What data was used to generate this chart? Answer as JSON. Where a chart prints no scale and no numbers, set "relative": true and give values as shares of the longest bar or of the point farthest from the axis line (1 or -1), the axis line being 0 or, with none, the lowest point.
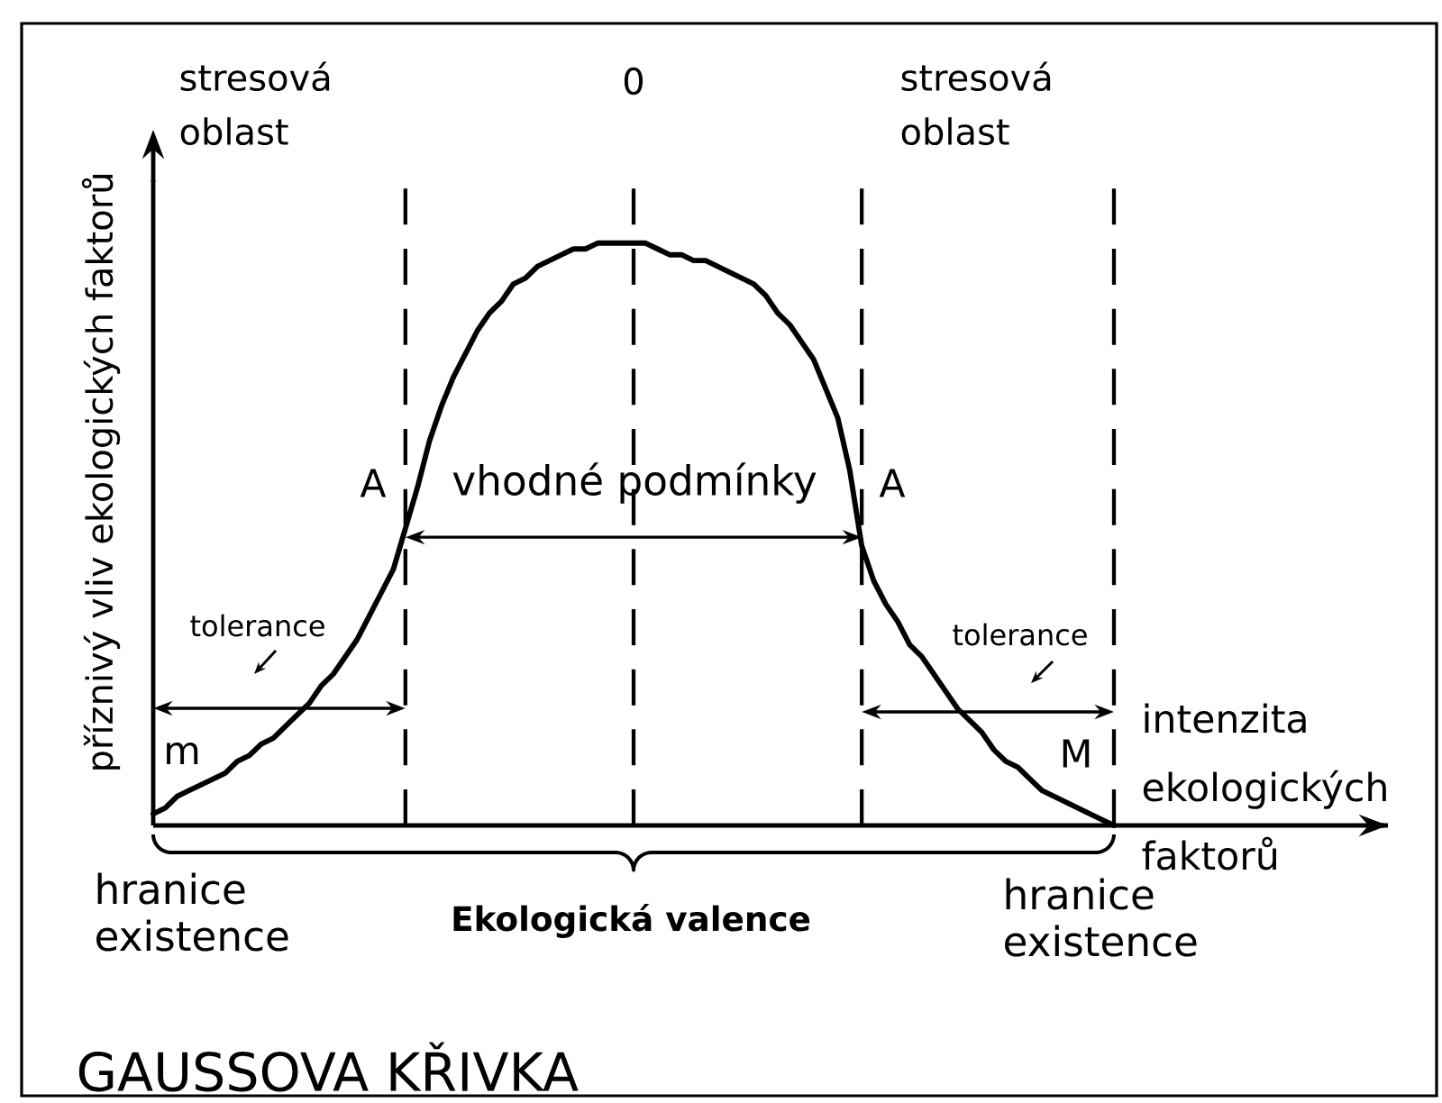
{
  "chart_data": {
    "type": "line",
    "title": "GAUSSOVA KŘIVKA",
    "xlabel": "intenzita ekologických faktorů",
    "ylabel": "příznivý vliv ekologických faktorů",
    "relative": true,
    "grid": "x",
    "categories": [
      null,
      null,
      null,
      null,
      null,
      null,
      null,
      null,
      null,
      null,
      null,
      null,
      null,
      null,
      null,
      null,
      null,
      null,
      null,
      null,
      null,
      null,
      null,
      null,
      null,
      null,
      null,
      null,
      null,
      null,
      null,
      null,
      null,
      null,
      null,
      null,
      null,
      null,
      null,
      null,
      null,
      null,
      null,
      null,
      null,
      null,
      null,
      null,
      null,
      null,
      null,
      null,
      null,
      null,
      null,
      null,
      null,
      null,
      null,
      null,
      null,
      null,
      null,
      null,
      null,
      null,
      null,
      null,
      null,
      null,
      null,
      null,
      null,
      null,
      null,
      null,
      null,
      null,
      null,
      null,
      null
    ],
    "values": [
      0.02,
      0.03,
      0.05,
      0.06,
      0.07,
      0.08,
      0.09,
      0.11,
      0.12,
      0.14,
      0.15,
      0.17,
      0.19,
      0.21,
      0.24,
      0.26,
      0.29,
      0.32,
      0.36,
      0.4,
      0.44,
      0.51,
      0.58,
      0.66,
      0.72,
      0.77,
      0.81,
      0.85,
      0.88,
      0.9,
      0.93,
      0.94,
      0.96,
      0.97,
      0.98,
      0.99,
      0.99,
      1.0,
      1.0,
      1.0,
      1.0,
      1.0,
      0.99,
      0.98,
      0.98,
      0.97,
      0.97,
      0.96,
      0.95,
      0.94,
      0.93,
      0.91,
      0.88,
      0.86,
      0.83,
      0.8,
      0.75,
      0.7,
      0.61,
      0.48,
      0.42,
      0.38,
      0.35,
      0.31,
      0.29,
      0.26,
      0.23,
      0.2,
      0.18,
      0.16,
      0.13,
      0.11,
      0.1,
      0.08,
      0.06,
      0.05,
      0.04,
      0.03,
      0.02,
      0.01,
      0
    ],
    "color": "#000000",
    "annotations": [
      "stresová oblast",
      "0",
      "stresová oblast",
      "A",
      "vhodné podmínky",
      "A",
      "tolerance",
      "tolerance",
      "m",
      "M",
      "hranice existence",
      "Ekologická valence",
      "hranice existence"
    ]
  }
}
